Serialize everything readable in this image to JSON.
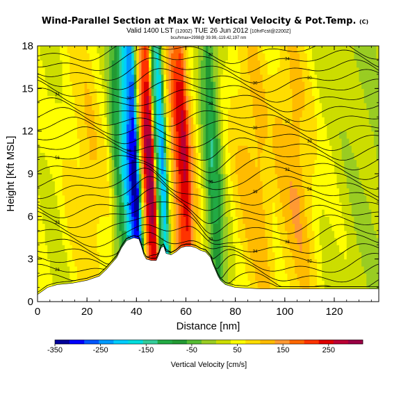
{
  "header": {
    "title": "Wind-Parallel Section at Max W: Vertical Velocity & Pot.Temp.",
    "title_mark": "(C)",
    "valid_prefix": "Valid 1400 LST",
    "valid_small": "(1200Z)",
    "valid_day": "TUE 26 Jun 2012",
    "valid_suffix": "[10hrFcst@2200Z]",
    "info_line": "bcu/hmax=2998@ 39.99,-119.42,197 nm"
  },
  "chart_data": {
    "type": "heatmap",
    "xlabel": "Distance [nm]",
    "ylabel": "Height [Kft MSL]",
    "xlim": [
      0,
      138
    ],
    "ylim": [
      0,
      18
    ],
    "x_ticks": [
      "0",
      "20",
      "40",
      "60",
      "80",
      "100",
      "120"
    ],
    "y_ticks": [
      "0",
      "3",
      "6",
      "9",
      "12",
      "15",
      "18"
    ],
    "colorbar": {
      "label": "Vertical Velocity [cm/s]",
      "range": [
        -350,
        325
      ],
      "ticks": [
        "-350",
        "-250",
        "-150",
        "-50",
        "50",
        "150",
        "250"
      ],
      "colors": [
        "#000099",
        "#0000ff",
        "#0055ff",
        "#0099ff",
        "#00ccff",
        "#00dddd",
        "#33cc99",
        "#22aa44",
        "#229933",
        "#55bb33",
        "#99cc22",
        "#ccdd00",
        "#ffff00",
        "#ffdd00",
        "#ffbb00",
        "#ff9933",
        "#ff6600",
        "#ff3300",
        "#dd0000",
        "#bb0033",
        "#990044"
      ]
    },
    "terrain_kft": [
      [
        0,
        0.5
      ],
      [
        4,
        1.0
      ],
      [
        8,
        1.2
      ],
      [
        14,
        1.3
      ],
      [
        20,
        1.5
      ],
      [
        25,
        1.8
      ],
      [
        28,
        2.3
      ],
      [
        30,
        2.7
      ],
      [
        32,
        3.1
      ],
      [
        34,
        3.8
      ],
      [
        36,
        4.3
      ],
      [
        39,
        4.5
      ],
      [
        41,
        4.4
      ],
      [
        42,
        3.9
      ],
      [
        43,
        3.3
      ],
      [
        44,
        3.0
      ],
      [
        46,
        2.9
      ],
      [
        48,
        2.9
      ],
      [
        49,
        3.3
      ],
      [
        50,
        3.8
      ],
      [
        51,
        3.9
      ],
      [
        52,
        3.4
      ],
      [
        54,
        3.3
      ],
      [
        56,
        3.5
      ],
      [
        58,
        3.8
      ],
      [
        60,
        3.9
      ],
      [
        62,
        3.9
      ],
      [
        64,
        3.8
      ],
      [
        66,
        3.6
      ],
      [
        68,
        3.5
      ],
      [
        70,
        3.1
      ],
      [
        71,
        2.6
      ],
      [
        72,
        2.2
      ],
      [
        73,
        1.8
      ],
      [
        74,
        1.5
      ],
      [
        76,
        1.2
      ],
      [
        80,
        1.0
      ],
      [
        90,
        0.9
      ],
      [
        100,
        0.9
      ],
      [
        110,
        0.9
      ],
      [
        120,
        0.9
      ],
      [
        138,
        0.9
      ]
    ],
    "w_profile": [
      [
        0,
        50
      ],
      [
        6,
        30
      ],
      [
        15,
        80
      ],
      [
        22,
        100
      ],
      [
        28,
        60
      ],
      [
        33,
        -100
      ],
      [
        36,
        -200
      ],
      [
        38,
        -300
      ],
      [
        40,
        -330
      ],
      [
        42,
        80
      ],
      [
        44,
        260
      ],
      [
        46,
        310
      ],
      [
        47,
        220
      ],
      [
        48,
        -60
      ],
      [
        50,
        -200
      ],
      [
        51,
        -230
      ],
      [
        53,
        50
      ],
      [
        55,
        150
      ],
      [
        58,
        250
      ],
      [
        60,
        270
      ],
      [
        62,
        150
      ],
      [
        65,
        60
      ],
      [
        68,
        -30
      ],
      [
        71,
        -120
      ],
      [
        73,
        -60
      ],
      [
        76,
        30
      ],
      [
        80,
        80
      ],
      [
        85,
        110
      ],
      [
        90,
        120
      ],
      [
        95,
        80
      ],
      [
        100,
        110
      ],
      [
        105,
        130
      ],
      [
        110,
        90
      ],
      [
        115,
        40
      ],
      [
        120,
        30
      ],
      [
        128,
        10
      ],
      [
        138,
        0
      ]
    ],
    "theta_labels": [
      "26",
      "34",
      "33",
      "30",
      "38",
      "36",
      "34",
      "32",
      "56",
      "38",
      "34",
      "33",
      "56",
      "30",
      "32",
      "39",
      "50",
      "32",
      "33",
      "36",
      "30",
      "34",
      "32",
      "33"
    ]
  }
}
